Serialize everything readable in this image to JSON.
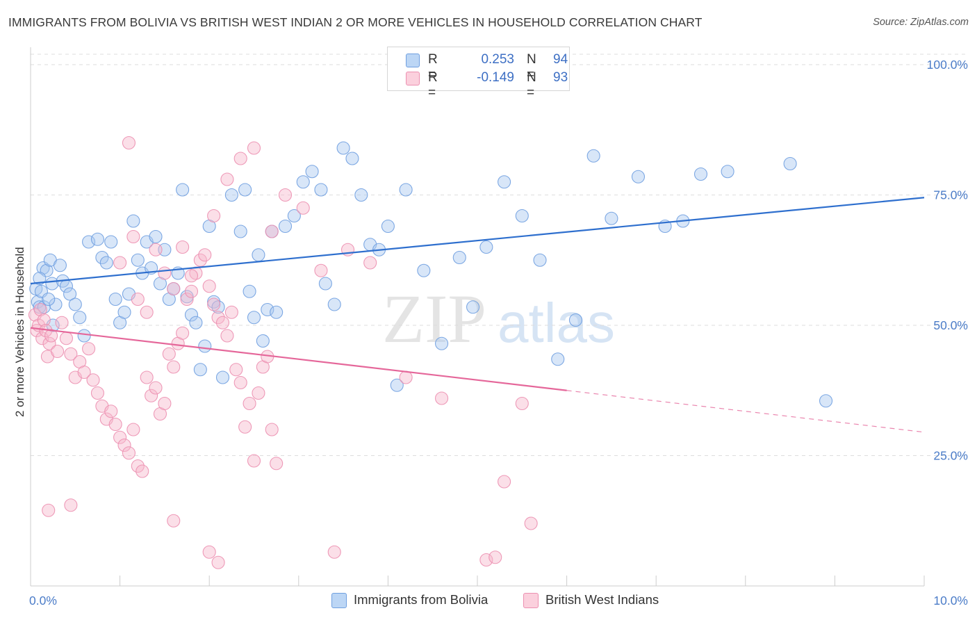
{
  "header": {
    "title": "IMMIGRANTS FROM BOLIVIA VS BRITISH WEST INDIAN 2 OR MORE VEHICLES IN HOUSEHOLD CORRELATION CHART",
    "source": "Source: ZipAtlas.com"
  },
  "watermark": {
    "zip": "ZIP",
    "atlas": "atlas"
  },
  "legend": {
    "r_label": "R =",
    "n_label": "N =",
    "series": [
      {
        "name": "Immigrants from Bolivia",
        "r": "0.253",
        "n": "94"
      },
      {
        "name": "British West Indians",
        "r": "-0.149",
        "n": "93"
      }
    ]
  },
  "colors": {
    "blue_fill": "#a8c8f0",
    "blue_stroke": "#6f9fe0",
    "blue_line": "#2e6fce",
    "pink_fill": "#f7b8cc",
    "pink_stroke": "#ec8fb0",
    "pink_line": "#e5679a",
    "tick_text": "#4b7cc8",
    "grid": "#dddddd"
  },
  "chart_data": {
    "type": "scatter",
    "title": "IMMIGRANTS FROM BOLIVIA VS BRITISH WEST INDIAN 2 OR MORE VEHICLES IN HOUSEHOLD CORRELATION CHART",
    "xlabel": "",
    "ylabel": "2 or more Vehicles in Household",
    "xlim": [
      0,
      10
    ],
    "ylim": [
      0,
      102
    ],
    "x_tick_labels": [
      "0.0%",
      "10.0%"
    ],
    "y_ticks": [
      25,
      50,
      75,
      100
    ],
    "y_tick_labels": [
      "25.0%",
      "50.0%",
      "75.0%",
      "100.0%"
    ],
    "grid": "horizontal dashed",
    "legend_position": "top-center",
    "series": [
      {
        "name": "Immigrants from Bolivia",
        "trend": {
          "x": [
            0,
            10
          ],
          "y": [
            58.0,
            74.5
          ],
          "dashed_from": null
        },
        "points": [
          [
            0.06,
            57.0
          ],
          [
            0.08,
            54.5
          ],
          [
            0.12,
            56.5
          ],
          [
            0.14,
            61.0
          ],
          [
            0.1,
            53.5
          ],
          [
            0.18,
            60.5
          ],
          [
            0.22,
            62.5
          ],
          [
            0.24,
            58.0
          ],
          [
            0.28,
            54.0
          ],
          [
            0.33,
            61.5
          ],
          [
            0.36,
            58.5
          ],
          [
            0.4,
            57.5
          ],
          [
            0.44,
            56.0
          ],
          [
            0.5,
            54.0
          ],
          [
            0.55,
            51.5
          ],
          [
            0.6,
            48.0
          ],
          [
            0.1,
            59.0
          ],
          [
            0.15,
            53.5
          ],
          [
            0.2,
            55.0
          ],
          [
            0.25,
            50.0
          ],
          [
            0.65,
            66.0
          ],
          [
            0.75,
            66.5
          ],
          [
            0.8,
            63.0
          ],
          [
            0.85,
            62.0
          ],
          [
            0.9,
            66.0
          ],
          [
            0.95,
            55.0
          ],
          [
            1.0,
            50.5
          ],
          [
            1.05,
            52.5
          ],
          [
            1.1,
            56.0
          ],
          [
            1.15,
            70.0
          ],
          [
            1.2,
            62.5
          ],
          [
            1.25,
            60.0
          ],
          [
            1.3,
            66.0
          ],
          [
            1.35,
            61.0
          ],
          [
            1.4,
            67.0
          ],
          [
            1.45,
            58.0
          ],
          [
            1.5,
            64.5
          ],
          [
            1.55,
            55.0
          ],
          [
            1.6,
            57.0
          ],
          [
            1.65,
            60.0
          ],
          [
            1.7,
            76.0
          ],
          [
            1.75,
            55.5
          ],
          [
            1.8,
            52.0
          ],
          [
            1.85,
            50.5
          ],
          [
            1.9,
            41.5
          ],
          [
            1.95,
            46.0
          ],
          [
            2.0,
            69.0
          ],
          [
            2.05,
            54.5
          ],
          [
            2.1,
            53.5
          ],
          [
            2.15,
            40.0
          ],
          [
            2.25,
            75.0
          ],
          [
            2.35,
            68.0
          ],
          [
            2.4,
            76.0
          ],
          [
            2.45,
            56.5
          ],
          [
            2.5,
            51.5
          ],
          [
            2.55,
            63.5
          ],
          [
            2.6,
            47.0
          ],
          [
            2.65,
            53.0
          ],
          [
            2.7,
            68.0
          ],
          [
            2.75,
            52.5
          ],
          [
            2.85,
            69.0
          ],
          [
            2.95,
            71.0
          ],
          [
            3.05,
            77.5
          ],
          [
            3.15,
            79.5
          ],
          [
            3.25,
            76.0
          ],
          [
            3.3,
            58.0
          ],
          [
            3.4,
            54.0
          ],
          [
            3.5,
            84.0
          ],
          [
            3.6,
            82.0
          ],
          [
            3.7,
            75.0
          ],
          [
            3.8,
            65.5
          ],
          [
            3.9,
            64.5
          ],
          [
            4.0,
            69.0
          ],
          [
            4.1,
            38.5
          ],
          [
            4.2,
            76.0
          ],
          [
            4.4,
            60.5
          ],
          [
            4.6,
            46.5
          ],
          [
            4.8,
            63.0
          ],
          [
            4.95,
            53.5
          ],
          [
            5.1,
            65.0
          ],
          [
            5.3,
            77.5
          ],
          [
            5.5,
            71.0
          ],
          [
            5.7,
            62.5
          ],
          [
            5.9,
            43.5
          ],
          [
            6.1,
            51.0
          ],
          [
            6.3,
            82.5
          ],
          [
            6.5,
            70.5
          ],
          [
            6.8,
            78.5
          ],
          [
            7.1,
            69.0
          ],
          [
            7.3,
            70.0
          ],
          [
            7.5,
            79.0
          ],
          [
            7.8,
            79.5
          ],
          [
            8.5,
            81.0
          ],
          [
            8.9,
            35.5
          ]
        ]
      },
      {
        "name": "British West Indians",
        "trend": {
          "x": [
            0,
            10
          ],
          "y": [
            49.5,
            29.5
          ],
          "dashed_from": 6.0
        },
        "points": [
          [
            0.05,
            52.0
          ],
          [
            0.07,
            49.0
          ],
          [
            0.09,
            50.0
          ],
          [
            0.11,
            53.0
          ],
          [
            0.13,
            47.5
          ],
          [
            0.15,
            51.0
          ],
          [
            0.17,
            49.0
          ],
          [
            0.19,
            44.0
          ],
          [
            0.21,
            46.5
          ],
          [
            0.23,
            48.0
          ],
          [
            0.3,
            45.0
          ],
          [
            0.35,
            50.5
          ],
          [
            0.4,
            47.5
          ],
          [
            0.45,
            44.5
          ],
          [
            0.5,
            40.0
          ],
          [
            0.55,
            43.0
          ],
          [
            0.6,
            41.0
          ],
          [
            0.65,
            45.5
          ],
          [
            0.7,
            39.5
          ],
          [
            0.75,
            37.0
          ],
          [
            0.8,
            34.5
          ],
          [
            0.85,
            32.0
          ],
          [
            0.9,
            33.5
          ],
          [
            0.95,
            31.0
          ],
          [
            1.0,
            28.5
          ],
          [
            1.05,
            27.0
          ],
          [
            1.1,
            25.5
          ],
          [
            1.15,
            30.0
          ],
          [
            1.2,
            23.0
          ],
          [
            1.25,
            22.0
          ],
          [
            1.3,
            40.0
          ],
          [
            1.35,
            36.5
          ],
          [
            1.4,
            38.0
          ],
          [
            1.45,
            33.0
          ],
          [
            1.5,
            35.0
          ],
          [
            1.55,
            44.5
          ],
          [
            1.6,
            42.0
          ],
          [
            1.65,
            46.5
          ],
          [
            1.7,
            48.5
          ],
          [
            1.75,
            55.0
          ],
          [
            1.8,
            56.5
          ],
          [
            1.85,
            60.0
          ],
          [
            1.9,
            62.5
          ],
          [
            1.95,
            63.5
          ],
          [
            2.0,
            57.5
          ],
          [
            2.05,
            54.0
          ],
          [
            2.1,
            51.5
          ],
          [
            2.15,
            50.5
          ],
          [
            2.2,
            48.0
          ],
          [
            2.25,
            52.5
          ],
          [
            2.3,
            41.5
          ],
          [
            2.35,
            39.0
          ],
          [
            2.4,
            30.5
          ],
          [
            2.45,
            35.0
          ],
          [
            2.5,
            24.0
          ],
          [
            2.55,
            37.0
          ],
          [
            2.6,
            42.0
          ],
          [
            2.65,
            44.0
          ],
          [
            2.7,
            30.0
          ],
          [
            2.75,
            23.5
          ],
          [
            1.0,
            62.0
          ],
          [
            1.1,
            85.0
          ],
          [
            1.15,
            67.0
          ],
          [
            1.2,
            55.0
          ],
          [
            1.3,
            52.5
          ],
          [
            1.4,
            64.5
          ],
          [
            1.5,
            60.0
          ],
          [
            1.6,
            57.0
          ],
          [
            1.7,
            65.0
          ],
          [
            1.8,
            59.5
          ],
          [
            0.2,
            14.5
          ],
          [
            0.45,
            15.5
          ],
          [
            1.6,
            12.5
          ],
          [
            2.0,
            6.5
          ],
          [
            2.1,
            4.5
          ],
          [
            3.4,
            6.5
          ],
          [
            5.1,
            5.0
          ],
          [
            5.2,
            5.5
          ],
          [
            5.6,
            12.0
          ],
          [
            5.3,
            20.0
          ],
          [
            2.05,
            71.0
          ],
          [
            2.2,
            78.0
          ],
          [
            2.35,
            82.0
          ],
          [
            2.5,
            84.0
          ],
          [
            2.7,
            68.0
          ],
          [
            2.85,
            75.0
          ],
          [
            3.05,
            72.5
          ],
          [
            3.25,
            60.5
          ],
          [
            3.55,
            64.5
          ],
          [
            3.8,
            62.0
          ],
          [
            4.2,
            40.0
          ],
          [
            4.6,
            36.0
          ],
          [
            5.5,
            35.0
          ]
        ]
      }
    ]
  }
}
